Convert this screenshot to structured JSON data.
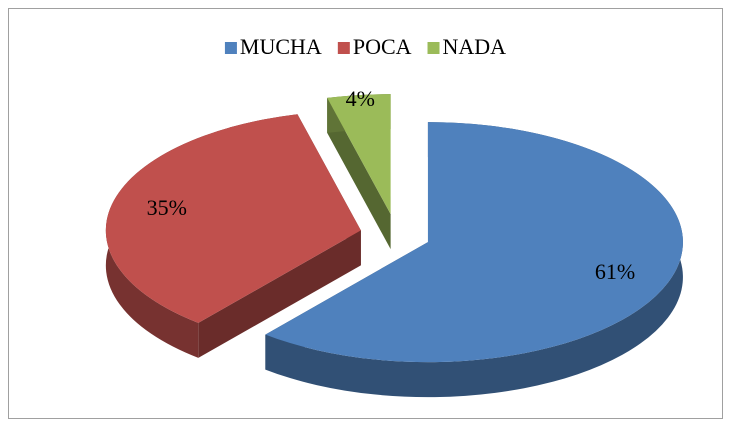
{
  "chart_data": {
    "type": "pie",
    "categories": [
      "MUCHA",
      "POCA",
      "NADA"
    ],
    "values": [
      61,
      35,
      4
    ],
    "value_labels": [
      "61%",
      "35%",
      "4%"
    ],
    "colors": [
      "#4f81bd",
      "#c0504d",
      "#9bbb59"
    ],
    "legend": "top"
  }
}
